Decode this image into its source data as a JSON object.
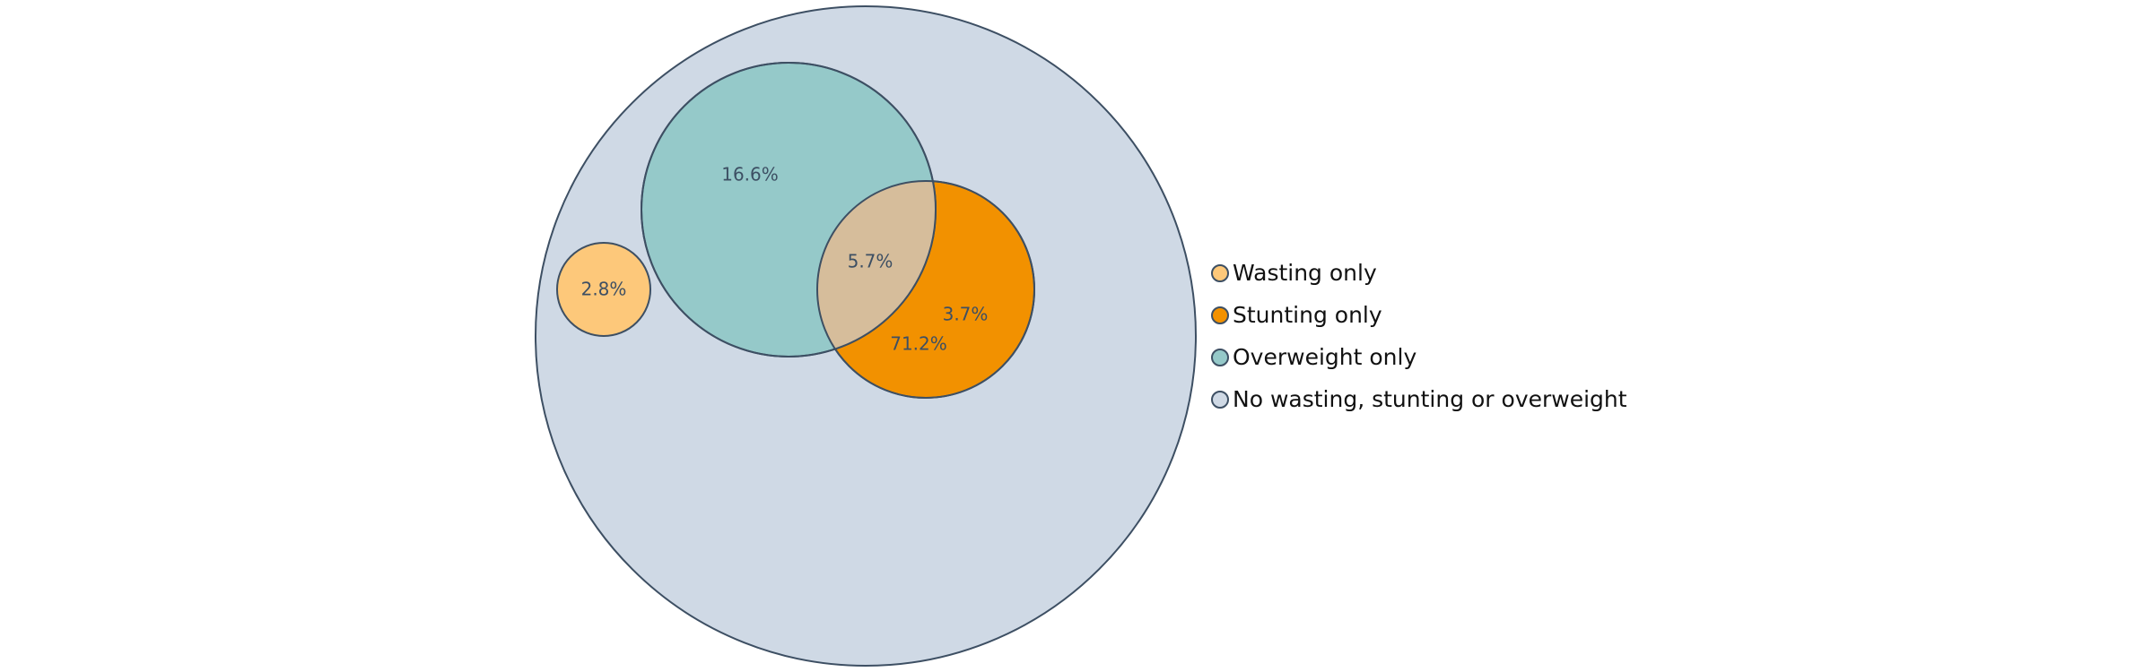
{
  "diagram": {
    "sets": [
      {
        "name": "Wasting only",
        "color": "#fdc87a"
      },
      {
        "name": "Stunting only",
        "color": "#f29100"
      },
      {
        "name": "Overweight only",
        "color": "#95c9c9"
      },
      {
        "name": "No wasting, stunting or overweight",
        "color": "#cfd9e5"
      }
    ],
    "overlap_color": "#d6bd9b",
    "outline_color": "#3d4f63",
    "labels": {
      "wasting": "2.8%",
      "overweight": "16.6%",
      "overlap": "5.7%",
      "stunting": "3.7%",
      "none": "71.2%"
    }
  }
}
